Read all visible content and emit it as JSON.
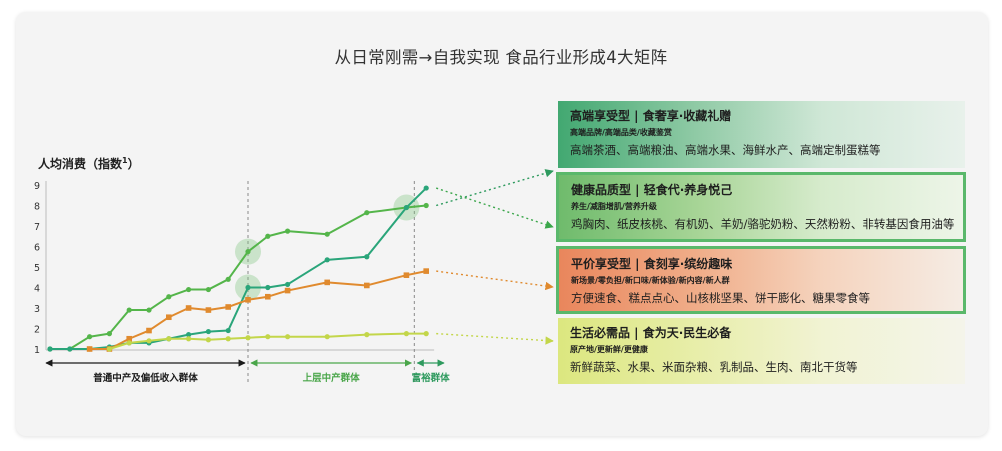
{
  "title": "从日常刚需→自我实现   食品行业形成4大矩阵",
  "chart_data": {
    "type": "line",
    "ylabel": "人均消费（指数",
    "ylabel_superscript": "1",
    "ylabel_suffix": "）",
    "ylim": [
      1,
      9
    ],
    "yticks": [
      "1",
      "2",
      "3",
      "4",
      "5",
      "6",
      "7",
      "8",
      "9"
    ],
    "groups": [
      {
        "label": "普通中产及偏低收入群体",
        "color": "#1a1a1a"
      },
      {
        "label": "上层中产群体",
        "color": "#4aa64a"
      },
      {
        "label": "富裕群体",
        "color": "#2e9a5e"
      }
    ],
    "series": [
      {
        "color": "#54b54a",
        "x": [
          0,
          1,
          2,
          3,
          4,
          5,
          6,
          7,
          8,
          9,
          10,
          11,
          12,
          14,
          16,
          18,
          19
        ],
        "y": [
          1.0,
          1.0,
          1.6,
          1.75,
          2.9,
          2.9,
          3.55,
          3.9,
          3.9,
          4.4,
          5.75,
          6.5,
          6.75,
          6.6,
          7.65,
          7.9,
          8.0
        ]
      },
      {
        "color": "#2aa57a",
        "x": [
          0,
          1,
          2,
          3,
          4,
          5,
          6,
          7,
          8,
          9,
          10,
          11,
          12,
          14,
          16,
          18,
          19
        ],
        "y": [
          1.0,
          1.0,
          1.0,
          1.1,
          1.3,
          1.3,
          1.5,
          1.7,
          1.85,
          1.9,
          4.0,
          4.0,
          4.15,
          5.35,
          5.5,
          7.9,
          8.85
        ]
      },
      {
        "color": "#e08a2e",
        "x": [
          2,
          3,
          4,
          5,
          6,
          7,
          8,
          9,
          10,
          11,
          12,
          14,
          16,
          18,
          19
        ],
        "y": [
          1.0,
          1.0,
          1.5,
          1.9,
          2.55,
          3.0,
          2.9,
          3.05,
          3.4,
          3.55,
          3.85,
          4.25,
          4.1,
          4.6,
          4.8
        ]
      },
      {
        "color": "#c3d64a",
        "x": [
          3,
          4,
          5,
          6,
          7,
          8,
          9,
          10,
          11,
          12,
          14,
          16,
          18,
          19
        ],
        "y": [
          1.0,
          1.3,
          1.4,
          1.5,
          1.5,
          1.45,
          1.5,
          1.55,
          1.6,
          1.6,
          1.6,
          1.7,
          1.75,
          1.75
        ]
      }
    ]
  },
  "panels": [
    {
      "heading": "高端享受型 | 食奢享·收藏礼赠",
      "tags": "高端品牌/高端品类/收藏鉴赏",
      "items": "高端茶酒、高端粮油、高端水果、海鲜水产、高端定制蛋糕等"
    },
    {
      "heading": "健康品质型 | 轻食代·养身悦己",
      "tags": "养生/减脂增肌/营养升级",
      "items": "鸡胸肉、纸皮核桃、有机奶、羊奶/骆驼奶粉、天然粉粉、非转基因食用油等"
    },
    {
      "heading": "平价享受型 | 食刻享·缤纷趣味",
      "tags": "新场景/零负担/新口味/新体验/新内容/新人群",
      "items": "方便速食、糕点点心、山核桃坚果、饼干膨化、糖果零食等"
    },
    {
      "heading": "生活必需品 | 食为天·民生必备",
      "tags": "原产地/更新鲜/更健康",
      "items": "新鲜蔬菜、水果、米面杂粮、乳制品、生肉、南北干货等"
    }
  ],
  "connectors": [
    {
      "from_series": 0,
      "to_panel": 0,
      "color": "#2e9a5e"
    },
    {
      "from_series": 1,
      "to_panel": 1,
      "color": "#3aa64a"
    },
    {
      "from_series": 2,
      "to_panel": 2,
      "color": "#e08a2e"
    },
    {
      "from_series": 3,
      "to_panel": 3,
      "color": "#c3d64a"
    }
  ],
  "highlights": [
    {
      "x": 10,
      "y": 5.75
    },
    {
      "x": 10,
      "y": 4.0
    },
    {
      "x": 18,
      "y": 7.9
    }
  ]
}
